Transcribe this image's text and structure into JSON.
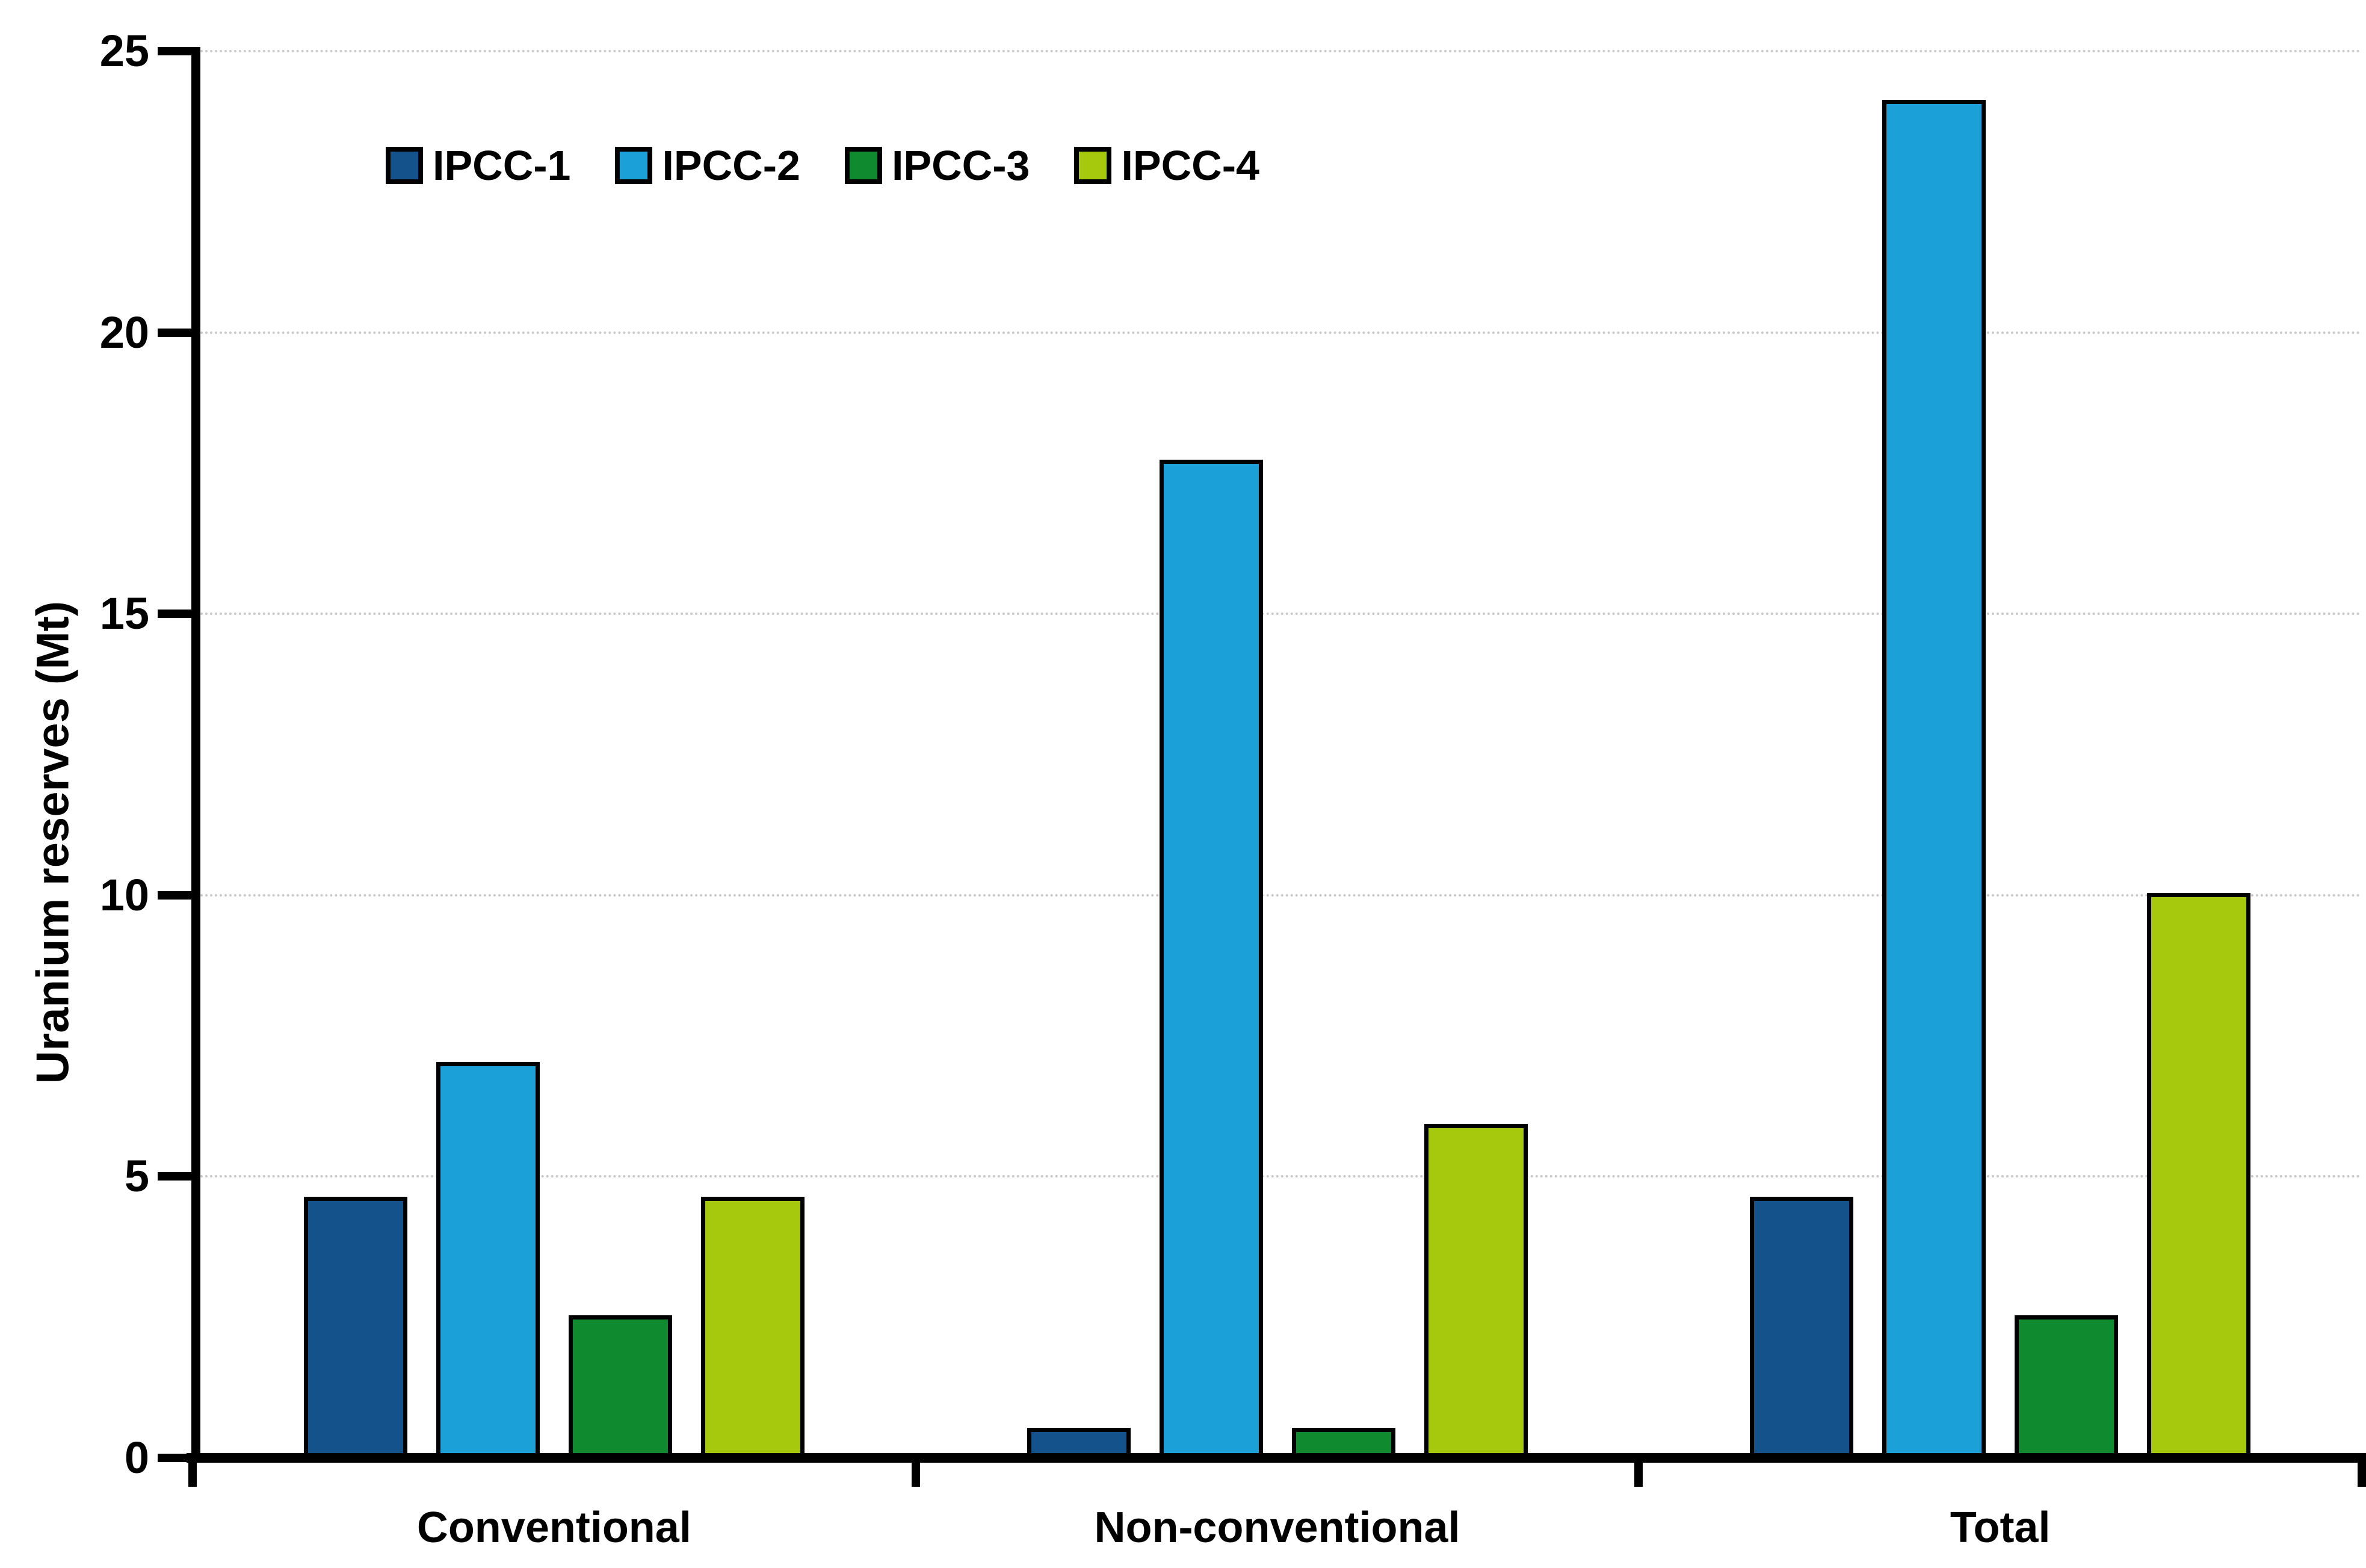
{
  "chart_data": {
    "type": "bar",
    "title": "",
    "xlabel": "",
    "ylabel": "Uranium reserves (Mt)",
    "ylim": [
      0,
      25
    ],
    "yticks": [
      0,
      5,
      10,
      15,
      20,
      25
    ],
    "grid": "horizontal-dotted",
    "grid_color": "#c9c9c9",
    "axis_color": "#000000",
    "legend_position": "top-left-inside",
    "categories": [
      "Conventional",
      "Non-conventional",
      "Total"
    ],
    "series": [
      {
        "name": "IPCC-1",
        "color": "#14528C",
        "values": [
          4.6,
          0.5,
          4.6
        ]
      },
      {
        "name": "IPCC-2",
        "color": "#1BA0D8",
        "values": [
          7.0,
          17.7,
          24.1
        ]
      },
      {
        "name": "IPCC-3",
        "color": "#0F8A2F",
        "values": [
          2.5,
          0.5,
          2.5
        ]
      },
      {
        "name": "IPCC-4",
        "color": "#A6C80D",
        "values": [
          4.6,
          5.9,
          10.0
        ]
      }
    ]
  }
}
